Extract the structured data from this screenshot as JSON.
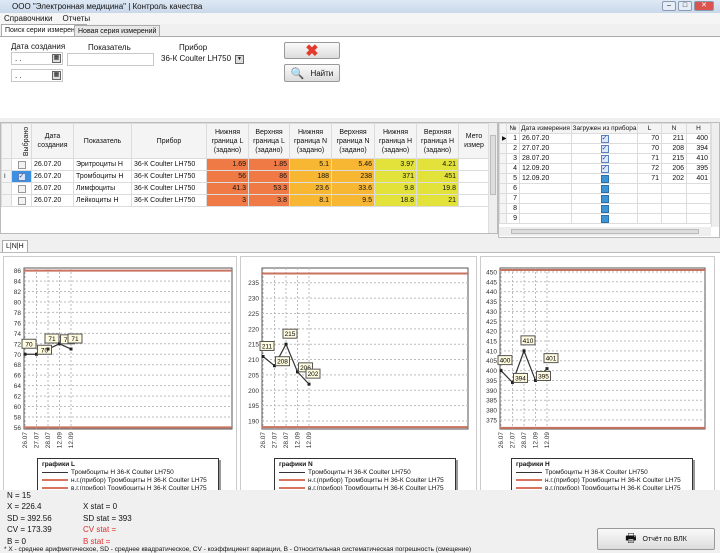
{
  "window": {
    "title": "ООО \"Электронная медицина\" | Контроль качества"
  },
  "menu": [
    "Справочники",
    "Отчеты"
  ],
  "tabs": [
    "Поиск серии измерений",
    "Новая серия измерений"
  ],
  "search": {
    "date_label": "Дата создания",
    "date_from": " .  .",
    "date_to": " .  .",
    "indicator_label": "Показатель",
    "indicator_value": "",
    "device_label": "Прибор",
    "device_value": "36-К Coulter LH750",
    "find_label": "Найти"
  },
  "grid": {
    "headers": [
      "Выбрано",
      "Дата создания",
      "Показатель",
      "Прибор",
      "Нижняя граница L (задано)",
      "Верхняя граница L (задано)",
      "Нижняя граница N (задано)",
      "Верхняя граница N (задано)",
      "Нижняя граница H (задано)",
      "Верхняя граница H (задано)",
      "Мето измер"
    ],
    "rows": [
      {
        "checked": false,
        "date": "26.07.20",
        "indicator": "Эритроциты Н",
        "device": "36-К Coulter LH750",
        "vals": [
          "1.69",
          "1.85",
          "5.1",
          "5.46",
          "3.97",
          "4.21"
        ]
      },
      {
        "checked": true,
        "date": "26.07.20",
        "indicator": "Тромбоциты Н",
        "device": "36-К Coulter LH750",
        "vals": [
          "56",
          "86",
          "188",
          "238",
          "371",
          "451"
        ]
      },
      {
        "checked": false,
        "date": "26.07.20",
        "indicator": "Лимфоциты",
        "device": "36-К Coulter LH750",
        "vals": [
          "41.3",
          "53.3",
          "23.6",
          "33.6",
          "9.8",
          "19.8"
        ]
      },
      {
        "checked": false,
        "date": "26.07.20",
        "indicator": "Лейкоциты Н",
        "device": "36-К Coulter LH750",
        "vals": [
          "3",
          "3.8",
          "8.1",
          "9.5",
          "18.8",
          "21"
        ]
      }
    ],
    "colors": {
      "L": "#f07a45",
      "N": "#f7b733",
      "H": "#e2e23a"
    }
  },
  "measurements": {
    "headers": [
      "№",
      "Дата измерения",
      "Загружен из прибора",
      "L",
      "N",
      "H"
    ],
    "rows": [
      {
        "n": "1",
        "date": "26.07.20",
        "loaded": true,
        "L": "70",
        "N": "211",
        "H": "400"
      },
      {
        "n": "2",
        "date": "27.07.20",
        "loaded": true,
        "L": "70",
        "N": "208",
        "H": "394"
      },
      {
        "n": "3",
        "date": "28.07.20",
        "loaded": true,
        "L": "71",
        "N": "215",
        "H": "410"
      },
      {
        "n": "4",
        "date": "12.09.20",
        "loaded": true,
        "L": "72",
        "N": "206",
        "H": "395"
      },
      {
        "n": "5",
        "date": "12.09.20",
        "loaded": false,
        "L": "71",
        "N": "202",
        "H": "401"
      },
      {
        "n": "6",
        "date": "",
        "loaded": false,
        "L": "",
        "N": "",
        "H": ""
      },
      {
        "n": "7",
        "date": "",
        "loaded": false,
        "L": "",
        "N": "",
        "H": ""
      },
      {
        "n": "8",
        "date": "",
        "loaded": false,
        "L": "",
        "N": "",
        "H": ""
      },
      {
        "n": "9",
        "date": "",
        "loaded": false,
        "L": "",
        "N": "",
        "H": ""
      }
    ]
  },
  "chart_tab": "L|N|H",
  "chart_data": [
    {
      "type": "line",
      "title": "графики L",
      "categories": [
        "26.07",
        "27.07",
        "28.07",
        "12.09",
        "12.09"
      ],
      "ylim": [
        55.7,
        86.5
      ],
      "yticks": [
        56,
        58,
        60,
        62,
        64,
        66,
        68,
        70,
        72,
        74,
        76,
        78,
        80,
        82,
        84,
        86
      ],
      "grid": true,
      "legend": "bottom",
      "series": [
        {
          "name": "Тромбоциты Н 36-К Coulter LH750",
          "values": [
            70,
            70,
            71,
            72,
            71
          ],
          "color": "#333333"
        },
        {
          "name": "н.г.(прибор) Тромбоциты Н 36-К Coulter LH75",
          "values": [
            56,
            56,
            56,
            56,
            56
          ],
          "color": "#c8735f"
        },
        {
          "name": "в.г.(прибор) Тромбоциты Н 36-К Coulter LH75",
          "values": [
            86,
            86,
            86,
            86,
            86
          ],
          "color": "#c8735f"
        }
      ]
    },
    {
      "type": "line",
      "title": "графики N",
      "categories": [
        "26.07",
        "27.07",
        "28.07",
        "12.09",
        "12.09"
      ],
      "ylim": [
        187.4,
        239.8
      ],
      "yticks": [
        190,
        195,
        200,
        205,
        210,
        215,
        220,
        225,
        230,
        235
      ],
      "grid": true,
      "legend": "bottom",
      "series": [
        {
          "name": "Тромбоциты Н 36-К Coulter LH750",
          "values": [
            211,
            208,
            215,
            206,
            202
          ],
          "color": "#333333"
        },
        {
          "name": "н.г.(прибор) Тромбоциты Н 36-К Coulter LH75",
          "values": [
            188,
            188,
            188,
            188,
            188
          ],
          "color": "#c8735f"
        },
        {
          "name": "в.г.(прибор) Тромбоциты Н 36-К Coulter LH75",
          "values": [
            238,
            238,
            238,
            238,
            238
          ],
          "color": "#c8735f"
        }
      ]
    },
    {
      "type": "line",
      "title": "графики H",
      "categories": [
        "26.07",
        "27.07",
        "28.07",
        "12.09",
        "12.09"
      ],
      "ylim": [
        370.4,
        452
      ],
      "yticks": [
        375,
        380,
        385,
        390,
        395,
        400,
        405,
        410,
        415,
        420,
        425,
        430,
        435,
        440,
        445,
        450
      ],
      "grid": true,
      "legend": "bottom",
      "series": [
        {
          "name": "Тромбоциты Н 36-К Coulter LH750",
          "values": [
            400,
            394,
            410,
            395,
            401
          ],
          "color": "#333333"
        },
        {
          "name": "н.г.(прибор) Тромбоциты Н 36-К Coulter LH75",
          "values": [
            371,
            371,
            371,
            371,
            371
          ],
          "color": "#c8735f"
        },
        {
          "name": "в.г.(прибор) Тромбоциты Н 36-К Coulter LH75",
          "values": [
            451,
            451,
            451,
            451,
            451
          ],
          "color": "#c8735f"
        }
      ]
    }
  ],
  "stats": {
    "n": "N = 15",
    "x": "X = 226.4",
    "sd": "SD = 392.56",
    "cv": "CV = 173.39",
    "b": "B = 0",
    "x_stat": "X stat = 0",
    "sd_stat": "SD stat = 393",
    "cv_stat": "CV stat =",
    "b_stat": "B stat =",
    "footnote": "* X - среднее арифметическое, SD - среднее квадратическое, CV - коэффициент вариации, B - Относительная систематическая  погрешность (смещение)"
  },
  "report_button": "Отчёт по ВЛК"
}
